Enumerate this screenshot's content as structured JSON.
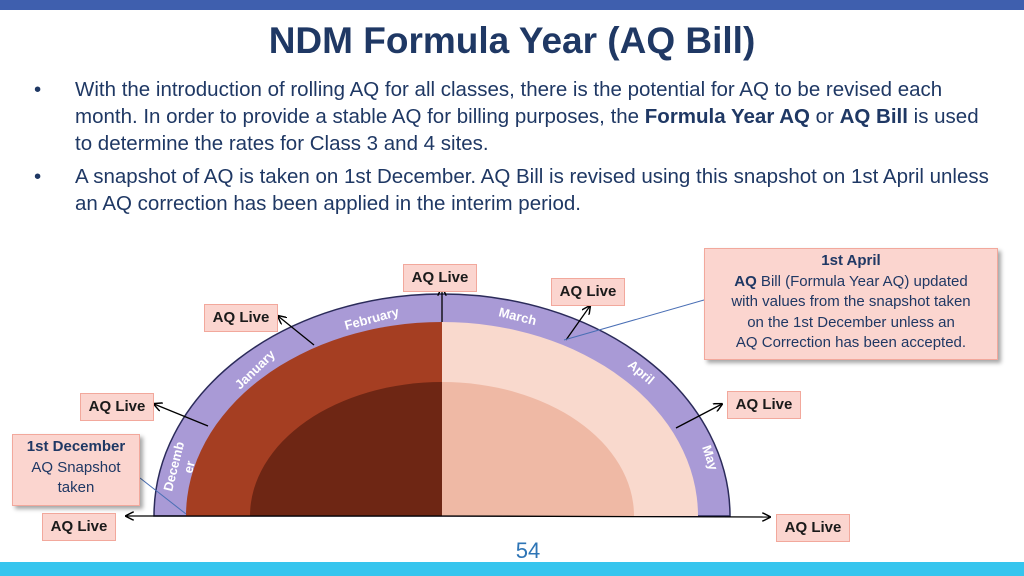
{
  "title": "NDM Formula Year (AQ Bill)",
  "bullets": [
    {
      "seg1": "With the introduction of rolling AQ for all classes, there is the potential for AQ to be revised each month. In order to provide a stable AQ for billing purposes, the ",
      "bold1": "Formula Year AQ",
      "seg2": " or ",
      "bold2": "AQ Bill",
      "seg3": " is used to determine the rates for Class 3 and 4 sites."
    },
    {
      "text": "A snapshot of AQ is taken on 1st December. AQ Bill is revised using this snapshot on 1st April unless an AQ correction has been applied in the interim period."
    }
  ],
  "bullet_char": "•",
  "months": [
    "Decemb",
    "er",
    "January",
    "February",
    "March",
    "April",
    "May"
  ],
  "aq_live_label": "AQ Live",
  "december_box": {
    "line1": "1st December",
    "line2": "AQ Snapshot",
    "line3": "taken"
  },
  "april_box": {
    "line1": "1st April",
    "line2_bold": "AQ",
    "line2_rest": " Bill (Formula Year  AQ) updated",
    "line3": "with values from the snapshot taken",
    "line4": "on the 1st December unless an",
    "line5": "AQ Correction has been accepted."
  },
  "page_number": "54",
  "colors": {
    "ring": "#a99ad6",
    "dark_left_outer": "#a53e22",
    "dark_left_inner": "#6e2614",
    "light_right_outer": "#f9d9cd",
    "light_right_inner": "#efb9a5",
    "label_fill": "#fbd5cf",
    "title": "#1f3864"
  }
}
